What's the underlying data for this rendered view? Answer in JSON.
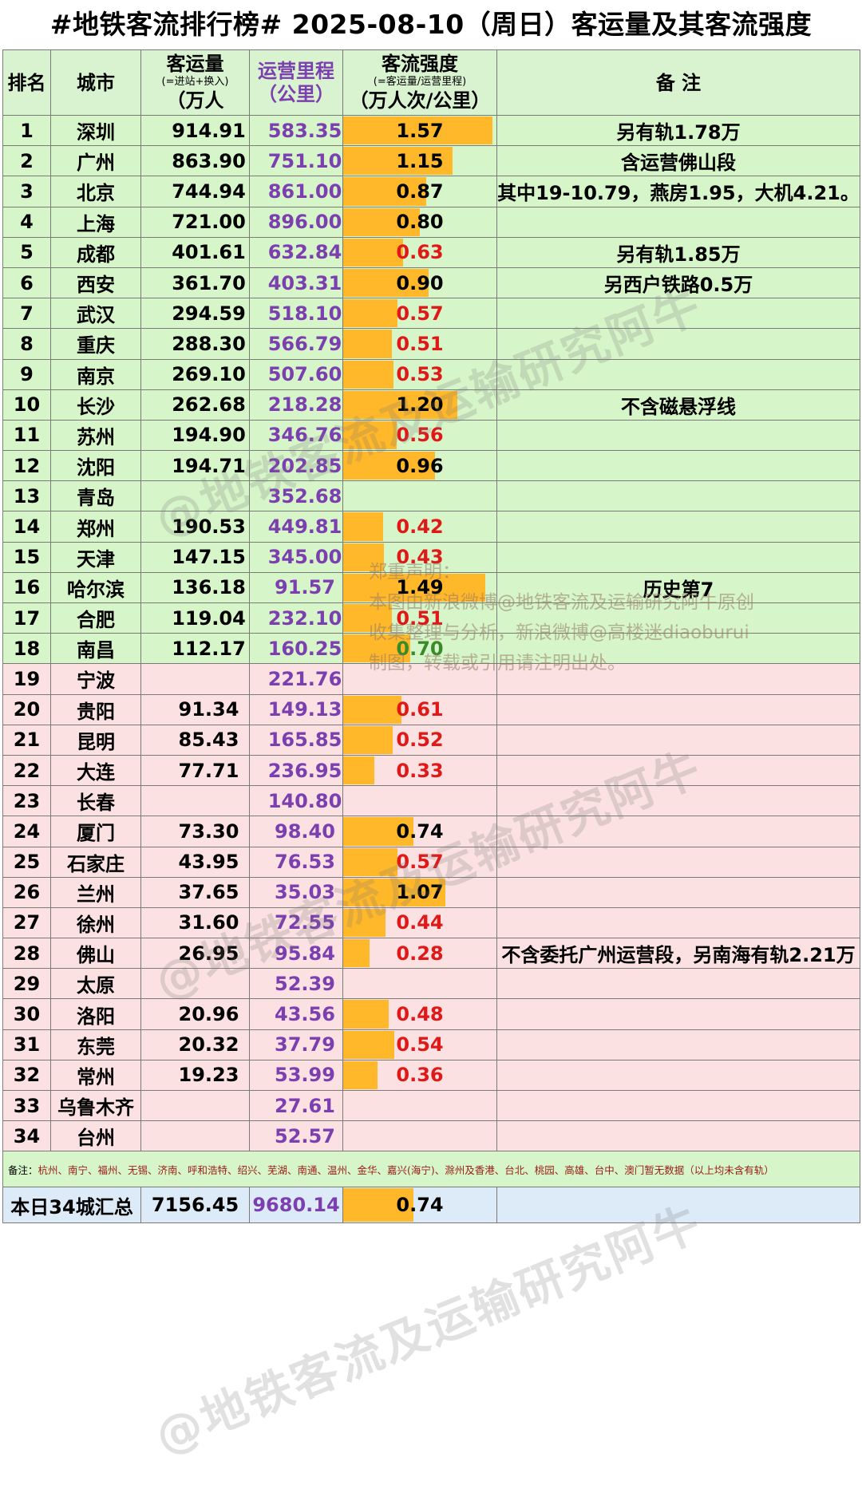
{
  "title": "#地铁客流排行榜# 2025-08-10（周日）客运量及其客流强度",
  "headers": {
    "rank": "排名",
    "city": "城市",
    "flow_main": "客运量",
    "flow_sub": "(=进站+换入)",
    "flow_unit": "（万人",
    "dist_main": "运营里程",
    "dist_unit": "（公里）",
    "intensity_main": "客流强度",
    "intensity_sub": "(=客运量/运营里程)",
    "intensity_unit": "（万人次/公里）",
    "note": "备 注"
  },
  "colors": {
    "bar": "#ffb829",
    "low_value": "#e01818",
    "mid_value": "#3a8a2a",
    "green_row": "#d6f5c8",
    "pink_row": "#fbe1e1",
    "distance": "#7b3fb0"
  },
  "rows": [
    {
      "rank": "1",
      "city": "深圳",
      "flow": "914.91",
      "dist": "583.35",
      "intensity": "1.57",
      "note": "另有轨1.78万",
      "color": "black",
      "bg": "green"
    },
    {
      "rank": "2",
      "city": "广州",
      "flow": "863.90",
      "dist": "751.10",
      "intensity": "1.15",
      "note": "含运营佛山段",
      "color": "black",
      "bg": "green"
    },
    {
      "rank": "3",
      "city": "北京",
      "flow": "744.94",
      "dist": "861.00",
      "intensity": "0.87",
      "note": "其中19-10.79，燕房1.95，大机4.21。",
      "color": "black",
      "bg": "green"
    },
    {
      "rank": "4",
      "city": "上海",
      "flow": "721.00",
      "dist": "896.00",
      "intensity": "0.80",
      "note": "",
      "color": "black",
      "bg": "green"
    },
    {
      "rank": "5",
      "city": "成都",
      "flow": "401.61",
      "dist": "632.84",
      "intensity": "0.63",
      "note": "另有轨1.85万",
      "color": "red",
      "bg": "green"
    },
    {
      "rank": "6",
      "city": "西安",
      "flow": "361.70",
      "dist": "403.31",
      "intensity": "0.90",
      "note": "另西户铁路0.5万",
      "color": "black",
      "bg": "green"
    },
    {
      "rank": "7",
      "city": "武汉",
      "flow": "294.59",
      "dist": "518.10",
      "intensity": "0.57",
      "note": "",
      "color": "red",
      "bg": "green"
    },
    {
      "rank": "8",
      "city": "重庆",
      "flow": "288.30",
      "dist": "566.79",
      "intensity": "0.51",
      "note": "",
      "color": "red",
      "bg": "green"
    },
    {
      "rank": "9",
      "city": "南京",
      "flow": "269.10",
      "dist": "507.60",
      "intensity": "0.53",
      "note": "",
      "color": "red",
      "bg": "green"
    },
    {
      "rank": "10",
      "city": "长沙",
      "flow": "262.68",
      "dist": "218.28",
      "intensity": "1.20",
      "note": "不含磁悬浮线",
      "color": "black",
      "bg": "green"
    },
    {
      "rank": "11",
      "city": "苏州",
      "flow": "194.90",
      "dist": "346.76",
      "intensity": "0.56",
      "note": "",
      "color": "red",
      "bg": "green"
    },
    {
      "rank": "12",
      "city": "沈阳",
      "flow": "194.71",
      "dist": "202.85",
      "intensity": "0.96",
      "note": "",
      "color": "black",
      "bg": "green"
    },
    {
      "rank": "13",
      "city": "青岛",
      "flow": "",
      "dist": "352.68",
      "intensity": "",
      "note": "",
      "color": "black",
      "bg": "green"
    },
    {
      "rank": "14",
      "city": "郑州",
      "flow": "190.53",
      "dist": "449.81",
      "intensity": "0.42",
      "note": "",
      "color": "red",
      "bg": "green"
    },
    {
      "rank": "15",
      "city": "天津",
      "flow": "147.15",
      "dist": "345.00",
      "intensity": "0.43",
      "note": "",
      "color": "red",
      "bg": "green"
    },
    {
      "rank": "16",
      "city": "哈尔滨",
      "flow": "136.18",
      "dist": "91.57",
      "intensity": "1.49",
      "note": "历史第7",
      "color": "black",
      "bg": "green"
    },
    {
      "rank": "17",
      "city": "合肥",
      "flow": "119.04",
      "dist": "232.10",
      "intensity": "0.51",
      "note": "",
      "color": "red",
      "bg": "green"
    },
    {
      "rank": "18",
      "city": "南昌",
      "flow": "112.17",
      "dist": "160.25",
      "intensity": "0.70",
      "note": "",
      "color": "dgreen",
      "bg": "green"
    },
    {
      "rank": "19",
      "city": "宁波",
      "flow": "",
      "dist": "221.76",
      "intensity": "",
      "note": "",
      "color": "black",
      "bg": "pink"
    },
    {
      "rank": "20",
      "city": "贵阳",
      "flow": "91.34",
      "dist": "149.13",
      "intensity": "0.61",
      "note": "",
      "color": "red",
      "bg": "pink"
    },
    {
      "rank": "21",
      "city": "昆明",
      "flow": "85.43",
      "dist": "165.85",
      "intensity": "0.52",
      "note": "",
      "color": "red",
      "bg": "pink"
    },
    {
      "rank": "22",
      "city": "大连",
      "flow": "77.71",
      "dist": "236.95",
      "intensity": "0.33",
      "note": "",
      "color": "red",
      "bg": "pink"
    },
    {
      "rank": "23",
      "city": "长春",
      "flow": "",
      "dist": "140.80",
      "intensity": "",
      "note": "",
      "color": "black",
      "bg": "pink"
    },
    {
      "rank": "24",
      "city": "厦门",
      "flow": "73.30",
      "dist": "98.40",
      "intensity": "0.74",
      "note": "",
      "color": "black",
      "bg": "pink"
    },
    {
      "rank": "25",
      "city": "石家庄",
      "flow": "43.95",
      "dist": "76.53",
      "intensity": "0.57",
      "note": "",
      "color": "red",
      "bg": "pink"
    },
    {
      "rank": "26",
      "city": "兰州",
      "flow": "37.65",
      "dist": "35.03",
      "intensity": "1.07",
      "note": "",
      "color": "black",
      "bg": "pink"
    },
    {
      "rank": "27",
      "city": "徐州",
      "flow": "31.60",
      "dist": "72.55",
      "intensity": "0.44",
      "note": "",
      "color": "red",
      "bg": "pink"
    },
    {
      "rank": "28",
      "city": "佛山",
      "flow": "26.95",
      "dist": "95.84",
      "intensity": "0.28",
      "note": "不含委托广州运营段，另南海有轨2.21万",
      "color": "red",
      "bg": "pink"
    },
    {
      "rank": "29",
      "city": "太原",
      "flow": "",
      "dist": "52.39",
      "intensity": "",
      "note": "",
      "color": "black",
      "bg": "pink"
    },
    {
      "rank": "30",
      "city": "洛阳",
      "flow": "20.96",
      "dist": "43.56",
      "intensity": "0.48",
      "note": "",
      "color": "red",
      "bg": "pink"
    },
    {
      "rank": "31",
      "city": "东莞",
      "flow": "20.32",
      "dist": "37.79",
      "intensity": "0.54",
      "note": "",
      "color": "red",
      "bg": "pink"
    },
    {
      "rank": "32",
      "city": "常州",
      "flow": "19.23",
      "dist": "53.99",
      "intensity": "0.36",
      "note": "",
      "color": "red",
      "bg": "pink"
    },
    {
      "rank": "33",
      "city": "乌鲁木齐",
      "flow": "",
      "dist": "27.61",
      "intensity": "",
      "note": "",
      "color": "black",
      "bg": "pink"
    },
    {
      "rank": "34",
      "city": "台州",
      "flow": "",
      "dist": "52.57",
      "intensity": "",
      "note": "",
      "color": "black",
      "bg": "pink"
    }
  ],
  "footnote": {
    "label": "备注：",
    "text": "杭州、南宁、福州、无锡、济南、呼和浩特、绍兴、芜湖、南通、温州、金华、嘉兴(海宁)、滁州及香港、台北、桃园、高雄、台中、澳门暂无数据（以上均未含有轨）"
  },
  "total": {
    "label": "本日34城汇总",
    "flow": "7156.45",
    "dist": "9680.14",
    "intensity": "0.74"
  },
  "notice": {
    "line1": "郑重声明：",
    "line2": "本图由新浪微博@地铁客流及运输研究阿牛原创",
    "line3": "收集整理与分析，新浪微博@高楼迷diaoburui",
    "line4": "制图，转载或引用请注明出处。"
  },
  "watermark": "@地铁客流及运输研究阿牛"
}
